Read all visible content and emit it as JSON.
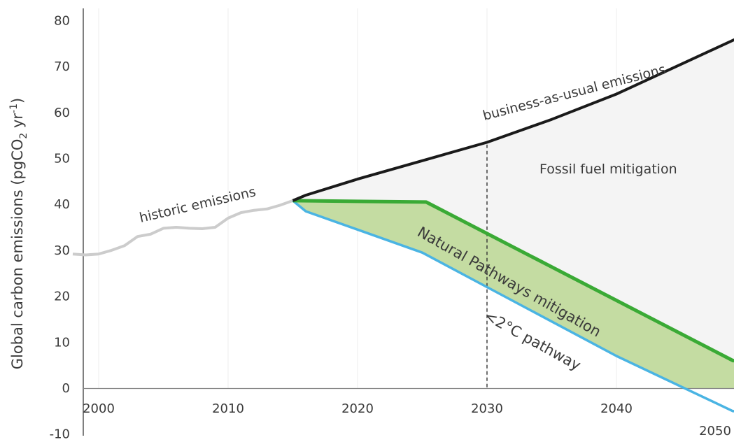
{
  "chart_data": {
    "type": "area",
    "ylabel": "Global carbon emissions (pgCO",
    "ylabel_sub": "2",
    "ylabel_mid": " yr",
    "ylabel_sup": "-1",
    "ylabel_end": ")",
    "ylim": [
      -10,
      80
    ],
    "xlim": [
      1998,
      2050
    ],
    "yticks": [
      80,
      70,
      60,
      50,
      40,
      30,
      20,
      10,
      0,
      -10
    ],
    "xticks": [
      2000,
      2010,
      2020,
      2030,
      2040,
      2050
    ],
    "grid": "vertical",
    "reference_line": {
      "x": 2030,
      "style": "dashed"
    },
    "series": [
      {
        "name": "historic emissions",
        "color": "#cccccc",
        "x": [
          1998,
          1999,
          2000,
          2001,
          2002,
          2003,
          2004,
          2005,
          2006,
          2007,
          2008,
          2009,
          2010,
          2011,
          2012,
          2013,
          2014,
          2015
        ],
        "y": [
          29.2,
          29.0,
          29.2,
          30.0,
          31.0,
          33.0,
          33.5,
          34.8,
          35.0,
          34.8,
          34.7,
          35.0,
          37.0,
          38.2,
          38.7,
          39.0,
          39.8,
          40.8
        ]
      },
      {
        "name": "business-as-usual emissions",
        "color": "#1a1a1a",
        "x": [
          2015,
          2016,
          2020,
          2025,
          2030,
          2035,
          2040,
          2045,
          2050
        ],
        "y": [
          40.8,
          42.0,
          45.5,
          49.5,
          53.5,
          58.5,
          64.0,
          70.5,
          77.0
        ]
      },
      {
        "name": "Natural Pathways mitigation",
        "color": "#3aaa35",
        "fill": "#c4dca2",
        "x": [
          2015,
          2025.3,
          2049,
          2050
        ],
        "y": [
          40.8,
          40.5,
          6.0,
          6.0
        ]
      },
      {
        "name": "<2°C pathway",
        "color": "#4ab4e3",
        "x": [
          2015,
          2016,
          2020,
          2025,
          2030,
          2040,
          2049,
          2050
        ],
        "y": [
          40.8,
          38.5,
          34.5,
          29.5,
          22.0,
          7.0,
          -5.0,
          -5.0
        ]
      }
    ],
    "annotations": {
      "historic": "historic emissions",
      "bau": "business-as-usual emissions",
      "fossil": "Fossil fuel mitigation",
      "natural": "Natural Pathways mitigation",
      "pathway": "<2°C pathway"
    },
    "colors": {
      "fossil_fill": "#f4f4f4",
      "natural_fill": "#c4dca2",
      "axis": "#555555",
      "grid": "#eeeeee"
    }
  }
}
